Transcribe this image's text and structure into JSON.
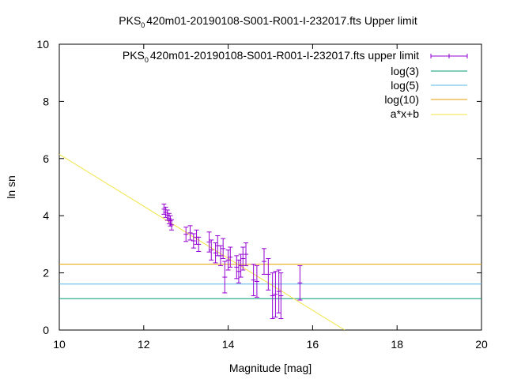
{
  "chart_data": {
    "type": "scatter",
    "title": {
      "prefix": "PKS",
      "subscript": "0",
      "suffix": "420m01-20190108-S001-R001-I-232017.fts Upper limit"
    },
    "xlabel": "Magnitude [mag]",
    "ylabel": "ln sn",
    "xlim": [
      10,
      20
    ],
    "ylim": [
      0,
      10
    ],
    "xticks": [
      "10",
      "12",
      "14",
      "16",
      "18",
      "20"
    ],
    "yticks": [
      "0",
      "2",
      "4",
      "6",
      "8",
      "10"
    ],
    "grid": false,
    "legend_position": "top-right",
    "series": [
      {
        "name_prefix": "PKS",
        "name_subscript": "0",
        "name_suffix": "420m01-20190108-S001-R001-I-232017.fts upper limit",
        "kind": "errorbar",
        "color": "#9400d3",
        "points": [
          {
            "x": 12.48,
            "y": 4.23,
            "e": 0.18
          },
          {
            "x": 12.52,
            "y": 4.12,
            "e": 0.18
          },
          {
            "x": 12.56,
            "y": 4.02,
            "e": 0.18
          },
          {
            "x": 12.6,
            "y": 3.9,
            "e": 0.18
          },
          {
            "x": 12.63,
            "y": 3.82,
            "e": 0.18
          },
          {
            "x": 12.66,
            "y": 3.68,
            "e": 0.18
          },
          {
            "x": 13.0,
            "y": 3.35,
            "e": 0.25
          },
          {
            "x": 13.1,
            "y": 3.4,
            "e": 0.25
          },
          {
            "x": 13.18,
            "y": 3.12,
            "e": 0.25
          },
          {
            "x": 13.25,
            "y": 3.25,
            "e": 0.25
          },
          {
            "x": 13.3,
            "y": 3.0,
            "e": 0.25
          },
          {
            "x": 13.55,
            "y": 3.08,
            "e": 0.35
          },
          {
            "x": 13.6,
            "y": 2.8,
            "e": 0.35
          },
          {
            "x": 13.7,
            "y": 2.7,
            "e": 0.35
          },
          {
            "x": 13.75,
            "y": 2.95,
            "e": 0.35
          },
          {
            "x": 13.82,
            "y": 2.6,
            "e": 0.35
          },
          {
            "x": 13.88,
            "y": 2.85,
            "e": 0.35
          },
          {
            "x": 13.92,
            "y": 1.85,
            "e": 0.55
          },
          {
            "x": 14.0,
            "y": 2.45,
            "e": 0.35
          },
          {
            "x": 14.05,
            "y": 2.55,
            "e": 0.35
          },
          {
            "x": 14.2,
            "y": 2.2,
            "e": 0.4
          },
          {
            "x": 14.25,
            "y": 2.05,
            "e": 0.4
          },
          {
            "x": 14.3,
            "y": 2.25,
            "e": 0.4
          },
          {
            "x": 14.35,
            "y": 2.5,
            "e": 0.4
          },
          {
            "x": 14.42,
            "y": 2.65,
            "e": 0.4
          },
          {
            "x": 14.6,
            "y": 1.75,
            "e": 0.55
          },
          {
            "x": 14.68,
            "y": 1.7,
            "e": 0.55
          },
          {
            "x": 14.85,
            "y": 2.4,
            "e": 0.45
          },
          {
            "x": 14.95,
            "y": 1.95,
            "e": 0.55
          },
          {
            "x": 15.05,
            "y": 1.2,
            "e": 0.8
          },
          {
            "x": 15.12,
            "y": 1.25,
            "e": 0.8
          },
          {
            "x": 15.2,
            "y": 1.35,
            "e": 0.75
          },
          {
            "x": 15.25,
            "y": 1.2,
            "e": 0.8
          },
          {
            "x": 15.7,
            "y": 1.65,
            "e": 0.6
          }
        ]
      },
      {
        "name": "log(3)",
        "kind": "hline",
        "color": "#009e73",
        "y": 1.0986
      },
      {
        "name": "log(5)",
        "kind": "hline",
        "color": "#56b4e9",
        "y": 1.6094
      },
      {
        "name": "log(10)",
        "kind": "hline",
        "color": "#e69f00",
        "y": 2.3026
      },
      {
        "name": "a*x+b",
        "kind": "fitline",
        "color": "#f0e442",
        "x": [
          10,
          16.76
        ],
        "y": [
          6.15,
          0
        ]
      }
    ]
  }
}
